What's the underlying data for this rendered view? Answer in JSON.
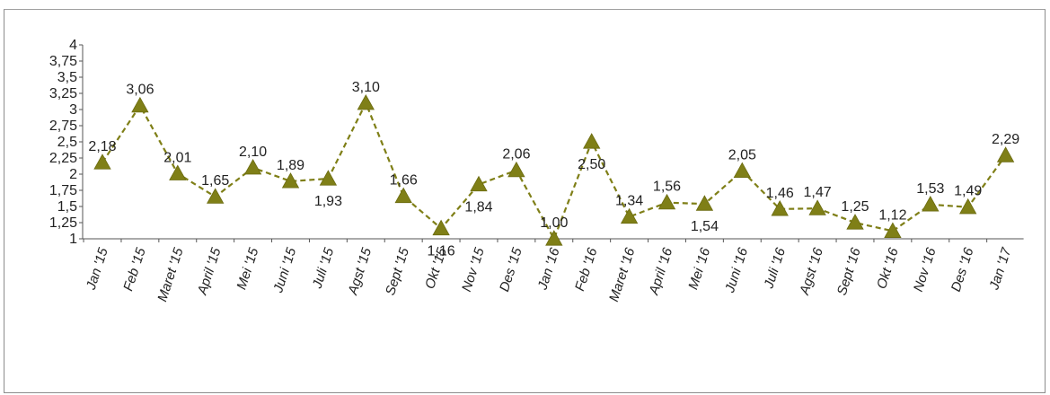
{
  "chart_data": {
    "type": "line",
    "categories": [
      "Jan '15",
      "Feb '15",
      "Maret '15",
      "April '15",
      "Mei '15",
      "Juni '15",
      "Juli '15",
      "Agst '15",
      "Sept '15",
      "Okt '15",
      "Nov '15",
      "Des '15",
      "Jan '16",
      "Feb '16",
      "Maret '16",
      "April '16",
      "Mei '16",
      "Juni '16",
      "Juli '16",
      "Agst '16",
      "Sept '16",
      "Okt '16",
      "Nov '16",
      "Des '16",
      "Jan '17"
    ],
    "values": [
      2.18,
      3.06,
      2.01,
      1.65,
      2.1,
      1.89,
      1.93,
      3.1,
      1.66,
      1.16,
      1.84,
      2.06,
      1.0,
      2.5,
      1.34,
      1.56,
      1.54,
      2.05,
      1.46,
      1.47,
      1.25,
      1.12,
      1.53,
      1.49,
      2.29
    ],
    "data_labels": [
      "2,18",
      "3,06",
      "2,01",
      "1,65",
      "2,10",
      "1,89",
      "1,93",
      "3,10",
      "1,66",
      "1,16",
      "1,84",
      "2,06",
      "1,00",
      "2,50",
      "1,34",
      "1,56",
      "1,54",
      "2,05",
      "1,46",
      "1,47",
      "1,25",
      "1,12",
      "1,53",
      "1,49",
      "2,29"
    ],
    "label_placement": [
      "above",
      "above",
      "above",
      "above",
      "above",
      "above",
      "below",
      "above",
      "above",
      "below",
      "below",
      "above",
      "above",
      "below",
      "above",
      "above",
      "below",
      "above",
      "above",
      "above",
      "above",
      "above",
      "above",
      "above",
      "above"
    ],
    "y_ticks": [
      1,
      1.25,
      1.5,
      1.75,
      2,
      2.25,
      2.5,
      2.75,
      3,
      3.25,
      3.5,
      3.75,
      4
    ],
    "y_tick_labels": [
      "1",
      "1,25",
      "1,5",
      "1,75",
      "2",
      "2,25",
      "2,5",
      "2,75",
      "3",
      "3,25",
      "3,5",
      "3,75",
      "4"
    ],
    "ylim": [
      1,
      4
    ],
    "title": "",
    "xlabel": "",
    "ylabel": "",
    "grid": false,
    "line_style": "dashed",
    "marker": "triangle",
    "color": "#7f7f17"
  }
}
